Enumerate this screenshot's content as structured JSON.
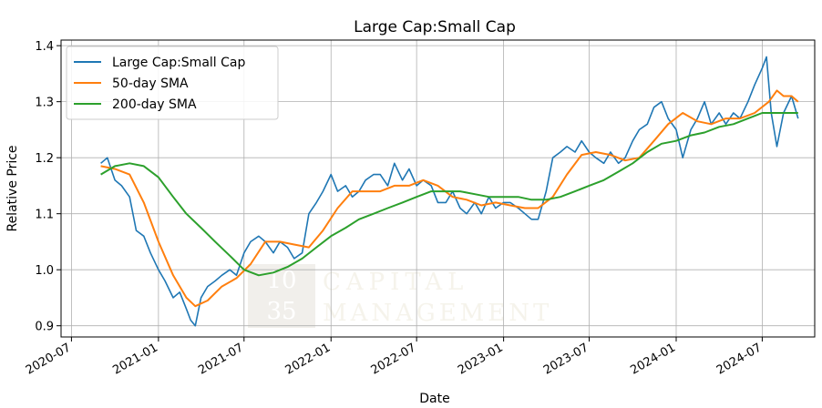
{
  "chart_data": {
    "type": "line",
    "title": "Large Cap:Small Cap",
    "xlabel": "Date",
    "ylabel": "Relative Price",
    "xlim": [
      "2020-06-09",
      "2024-10-20"
    ],
    "ylim": [
      0.88,
      1.41
    ],
    "x_ticks": [
      "2020-07",
      "2021-01",
      "2021-07",
      "2022-01",
      "2022-07",
      "2023-01",
      "2023-07",
      "2024-01",
      "2024-07"
    ],
    "y_ticks": [
      "0.9",
      "1.0",
      "1.1",
      "1.2",
      "1.3",
      "1.4"
    ],
    "grid": true,
    "legend_position": "top-left",
    "watermark": {
      "line1": "10",
      "line2": "35",
      "word1": "CAPITAL",
      "word2": "MANAGEMENT"
    },
    "series": [
      {
        "name": "Large Cap:Small Cap",
        "color": "#1f77b4",
        "x": [
          "2020-09-01",
          "2020-09-15",
          "2020-10-01",
          "2020-10-15",
          "2020-11-01",
          "2020-11-15",
          "2020-12-01",
          "2020-12-15",
          "2021-01-01",
          "2021-01-15",
          "2021-02-01",
          "2021-02-15",
          "2021-03-01",
          "2021-03-10",
          "2021-03-20",
          "2021-04-01",
          "2021-04-15",
          "2021-05-01",
          "2021-05-15",
          "2021-06-01",
          "2021-06-15",
          "2021-07-01",
          "2021-07-15",
          "2021-08-01",
          "2021-08-15",
          "2021-09-01",
          "2021-09-15",
          "2021-10-01",
          "2021-10-15",
          "2021-11-01",
          "2021-11-15",
          "2021-12-01",
          "2021-12-15",
          "2022-01-01",
          "2022-01-15",
          "2022-02-01",
          "2022-02-15",
          "2022-03-01",
          "2022-03-15",
          "2022-04-01",
          "2022-04-15",
          "2022-05-01",
          "2022-05-15",
          "2022-06-01",
          "2022-06-15",
          "2022-07-01",
          "2022-07-15",
          "2022-08-01",
          "2022-08-15",
          "2022-09-01",
          "2022-09-15",
          "2022-10-01",
          "2022-10-15",
          "2022-11-01",
          "2022-11-15",
          "2022-12-01",
          "2022-12-15",
          "2023-01-01",
          "2023-01-15",
          "2023-02-01",
          "2023-02-15",
          "2023-03-01",
          "2023-03-15",
          "2023-04-01",
          "2023-04-15",
          "2023-05-01",
          "2023-05-15",
          "2023-06-01",
          "2023-06-15",
          "2023-07-01",
          "2023-07-15",
          "2023-08-01",
          "2023-08-15",
          "2023-09-01",
          "2023-09-15",
          "2023-10-01",
          "2023-10-15",
          "2023-11-01",
          "2023-11-15",
          "2023-12-01",
          "2023-12-15",
          "2024-01-01",
          "2024-01-15",
          "2024-02-01",
          "2024-02-15",
          "2024-03-01",
          "2024-03-15",
          "2024-04-01",
          "2024-04-15",
          "2024-05-01",
          "2024-05-15",
          "2024-06-01",
          "2024-06-15",
          "2024-07-01",
          "2024-07-10",
          "2024-07-20",
          "2024-08-01",
          "2024-08-15",
          "2024-09-01",
          "2024-09-15"
        ],
        "y": [
          1.19,
          1.2,
          1.16,
          1.15,
          1.13,
          1.07,
          1.06,
          1.03,
          1.0,
          0.98,
          0.95,
          0.96,
          0.93,
          0.91,
          0.9,
          0.95,
          0.97,
          0.98,
          0.99,
          1.0,
          0.99,
          1.03,
          1.05,
          1.06,
          1.05,
          1.03,
          1.05,
          1.04,
          1.02,
          1.03,
          1.1,
          1.12,
          1.14,
          1.17,
          1.14,
          1.15,
          1.13,
          1.14,
          1.16,
          1.17,
          1.17,
          1.15,
          1.19,
          1.16,
          1.18,
          1.15,
          1.16,
          1.15,
          1.12,
          1.12,
          1.14,
          1.11,
          1.1,
          1.12,
          1.1,
          1.13,
          1.11,
          1.12,
          1.12,
          1.11,
          1.1,
          1.09,
          1.09,
          1.14,
          1.2,
          1.21,
          1.22,
          1.21,
          1.23,
          1.21,
          1.2,
          1.19,
          1.21,
          1.19,
          1.2,
          1.23,
          1.25,
          1.26,
          1.29,
          1.3,
          1.27,
          1.25,
          1.2,
          1.25,
          1.27,
          1.3,
          1.26,
          1.28,
          1.26,
          1.28,
          1.27,
          1.3,
          1.33,
          1.36,
          1.38,
          1.28,
          1.22,
          1.28,
          1.31,
          1.27
        ]
      },
      {
        "name": "50-day SMA",
        "color": "#ff7f0e",
        "x": [
          "2020-09-01",
          "2020-10-01",
          "2020-11-01",
          "2020-12-01",
          "2021-01-01",
          "2021-02-01",
          "2021-03-01",
          "2021-03-20",
          "2021-04-15",
          "2021-05-15",
          "2021-06-15",
          "2021-07-15",
          "2021-08-15",
          "2021-09-15",
          "2021-10-15",
          "2021-11-15",
          "2021-12-15",
          "2022-01-15",
          "2022-02-15",
          "2022-03-15",
          "2022-04-15",
          "2022-05-15",
          "2022-06-15",
          "2022-07-15",
          "2022-08-15",
          "2022-09-15",
          "2022-10-15",
          "2022-11-15",
          "2022-12-15",
          "2023-01-15",
          "2023-02-15",
          "2023-03-15",
          "2023-04-15",
          "2023-05-15",
          "2023-06-15",
          "2023-07-15",
          "2023-08-15",
          "2023-09-15",
          "2023-10-15",
          "2023-11-15",
          "2023-12-15",
          "2024-01-15",
          "2024-02-15",
          "2024-03-15",
          "2024-04-15",
          "2024-05-15",
          "2024-06-15",
          "2024-07-15",
          "2024-08-01",
          "2024-08-15",
          "2024-09-01",
          "2024-09-15"
        ],
        "y": [
          1.185,
          1.18,
          1.17,
          1.12,
          1.05,
          0.99,
          0.95,
          0.935,
          0.945,
          0.97,
          0.985,
          1.01,
          1.05,
          1.05,
          1.045,
          1.04,
          1.07,
          1.11,
          1.14,
          1.14,
          1.14,
          1.15,
          1.15,
          1.16,
          1.15,
          1.13,
          1.125,
          1.115,
          1.12,
          1.115,
          1.11,
          1.11,
          1.13,
          1.17,
          1.205,
          1.21,
          1.205,
          1.195,
          1.2,
          1.23,
          1.26,
          1.28,
          1.265,
          1.26,
          1.27,
          1.27,
          1.28,
          1.3,
          1.32,
          1.31,
          1.31,
          1.3
        ]
      },
      {
        "name": "200-day SMA",
        "color": "#2ca02c",
        "x": [
          "2020-09-01",
          "2020-10-01",
          "2020-11-01",
          "2020-12-01",
          "2021-01-01",
          "2021-02-01",
          "2021-03-01",
          "2021-04-01",
          "2021-05-01",
          "2021-06-01",
          "2021-07-01",
          "2021-08-01",
          "2021-09-01",
          "2021-10-01",
          "2021-11-01",
          "2021-12-01",
          "2022-01-01",
          "2022-02-01",
          "2022-03-01",
          "2022-04-01",
          "2022-05-01",
          "2022-06-01",
          "2022-07-01",
          "2022-08-01",
          "2022-09-01",
          "2022-10-01",
          "2022-11-01",
          "2022-12-01",
          "2023-01-01",
          "2023-02-01",
          "2023-03-01",
          "2023-04-01",
          "2023-05-01",
          "2023-06-01",
          "2023-07-01",
          "2023-08-01",
          "2023-09-01",
          "2023-10-01",
          "2023-11-01",
          "2023-12-01",
          "2024-01-01",
          "2024-02-01",
          "2024-03-01",
          "2024-04-01",
          "2024-05-01",
          "2024-06-01",
          "2024-07-01",
          "2024-08-01",
          "2024-09-01",
          "2024-09-15"
        ],
        "y": [
          1.17,
          1.185,
          1.19,
          1.185,
          1.165,
          1.13,
          1.1,
          1.075,
          1.05,
          1.025,
          1.0,
          0.99,
          0.995,
          1.005,
          1.02,
          1.04,
          1.06,
          1.075,
          1.09,
          1.1,
          1.11,
          1.12,
          1.13,
          1.14,
          1.14,
          1.14,
          1.135,
          1.13,
          1.13,
          1.13,
          1.125,
          1.125,
          1.13,
          1.14,
          1.15,
          1.16,
          1.175,
          1.19,
          1.21,
          1.225,
          1.23,
          1.24,
          1.245,
          1.255,
          1.26,
          1.27,
          1.28,
          1.28,
          1.28,
          1.28
        ]
      }
    ]
  }
}
